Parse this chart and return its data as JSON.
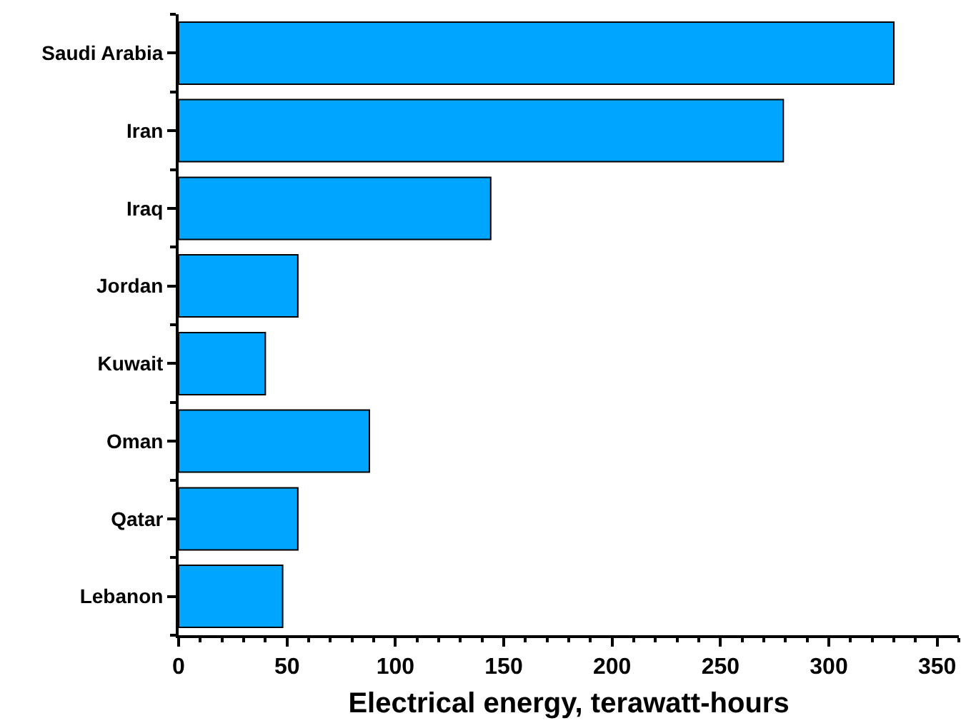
{
  "chart_data": {
    "type": "bar",
    "orientation": "horizontal",
    "xlabel": "Electrical energy, terawatt-hours",
    "categories": [
      "Saudi Arabia",
      "Iran",
      "Iraq",
      "Jordan",
      "Kuwait",
      "Oman",
      "Qatar",
      "Lebanon"
    ],
    "values": [
      330,
      279,
      144,
      55,
      40,
      88,
      55,
      48
    ],
    "color": "#00a5ff",
    "xlim": [
      0,
      360
    ],
    "xticks": [
      0,
      50,
      100,
      150,
      200,
      250,
      300,
      350
    ]
  }
}
